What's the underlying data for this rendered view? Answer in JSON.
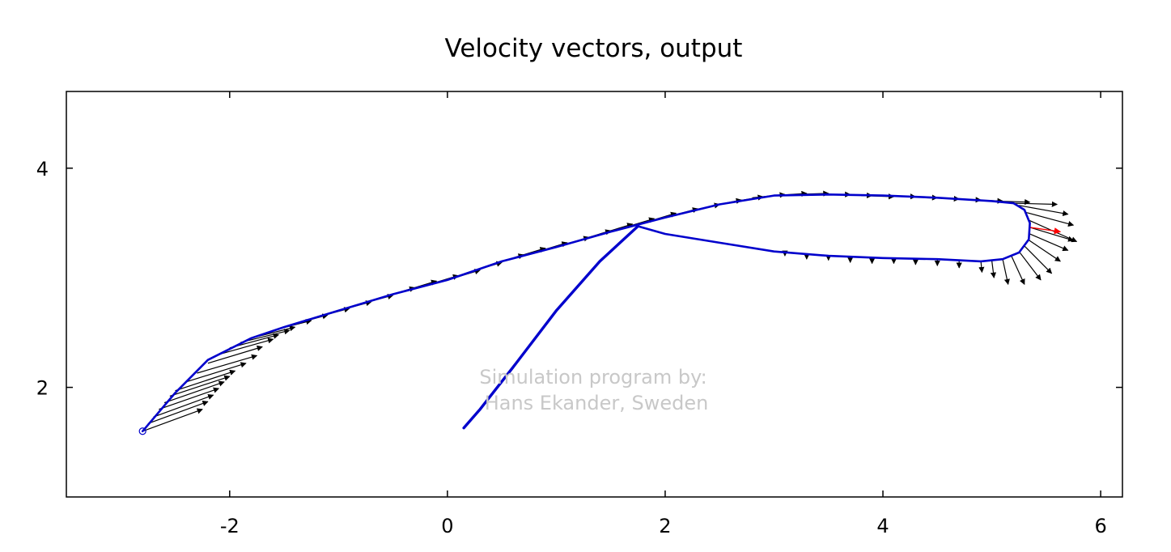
{
  "chart_data": {
    "type": "line",
    "title": "Velocity vectors, output",
    "xlabel": "",
    "ylabel": "",
    "xlim": [
      -3.5,
      6.2
    ],
    "ylim": [
      1.0,
      4.7
    ],
    "xticks": [
      -2,
      0,
      2,
      4,
      6
    ],
    "yticks": [
      2,
      4
    ],
    "grid": false,
    "colors": {
      "path": "#0000cc",
      "arrows": "#000000",
      "highlight": "#ff0000",
      "watermark": "#c8c8c8"
    },
    "series": [
      {
        "points": [
          [
            -2.8,
            1.6
          ],
          [
            -2.5,
            1.95
          ],
          [
            -2.2,
            2.25
          ],
          [
            -1.8,
            2.45
          ],
          [
            -1.5,
            2.55
          ],
          [
            -1.0,
            2.7
          ],
          [
            -0.5,
            2.85
          ],
          [
            0,
            2.98
          ],
          [
            0.5,
            3.15
          ],
          [
            1.0,
            3.28
          ],
          [
            1.5,
            3.42
          ],
          [
            2.0,
            3.55
          ],
          [
            2.5,
            3.67
          ],
          [
            3.0,
            3.75
          ],
          [
            3.5,
            3.76
          ],
          [
            4.0,
            3.75
          ],
          [
            4.5,
            3.73
          ],
          [
            5.0,
            3.7
          ],
          [
            5.2,
            3.68
          ],
          [
            5.3,
            3.62
          ],
          [
            5.35,
            3.5
          ],
          [
            5.34,
            3.35
          ],
          [
            5.25,
            3.23
          ],
          [
            5.1,
            3.17
          ],
          [
            4.9,
            3.15
          ],
          [
            4.5,
            3.17
          ],
          [
            4.0,
            3.18
          ],
          [
            3.5,
            3.2
          ],
          [
            3.0,
            3.24
          ],
          [
            2.5,
            3.32
          ],
          [
            2.0,
            3.4
          ],
          [
            1.75,
            3.47
          ]
        ]
      },
      {
        "points": [
          [
            1.75,
            3.47
          ],
          [
            1.4,
            3.15
          ],
          [
            1.0,
            2.7
          ],
          [
            0.6,
            2.18
          ],
          [
            0.3,
            1.8
          ],
          [
            0.15,
            1.63
          ]
        ]
      }
    ],
    "start_point": [
      -2.8,
      1.6
    ],
    "vectors": [
      {
        "x": -2.8,
        "y": 1.6,
        "dx": 0.55,
        "dy": 0.2
      },
      {
        "x": -2.75,
        "y": 1.67,
        "dx": 0.55,
        "dy": 0.2
      },
      {
        "x": -2.7,
        "y": 1.73,
        "dx": 0.55,
        "dy": 0.2
      },
      {
        "x": -2.65,
        "y": 1.8,
        "dx": 0.55,
        "dy": 0.19
      },
      {
        "x": -2.6,
        "y": 1.86,
        "dx": 0.55,
        "dy": 0.19
      },
      {
        "x": -2.55,
        "y": 1.92,
        "dx": 0.55,
        "dy": 0.18
      },
      {
        "x": -2.5,
        "y": 1.97,
        "dx": 0.55,
        "dy": 0.18
      },
      {
        "x": -2.4,
        "y": 2.05,
        "dx": 0.55,
        "dy": 0.17
      },
      {
        "x": -2.3,
        "y": 2.13,
        "dx": 0.55,
        "dy": 0.16
      },
      {
        "x": -2.2,
        "y": 2.22,
        "dx": 0.5,
        "dy": 0.15
      },
      {
        "x": -2.1,
        "y": 2.3,
        "dx": 0.5,
        "dy": 0.14
      },
      {
        "x": -2.0,
        "y": 2.36,
        "dx": 0.45,
        "dy": 0.12
      },
      {
        "x": -1.9,
        "y": 2.41,
        "dx": 0.45,
        "dy": 0.11
      },
      {
        "x": -1.8,
        "y": 2.45,
        "dx": 0.4,
        "dy": 0.1
      },
      {
        "x": -1.6,
        "y": 2.52,
        "dx": 0.35,
        "dy": 0.09
      },
      {
        "x": -1.4,
        "y": 2.58,
        "dx": 0.3,
        "dy": 0.08
      },
      {
        "x": -1.2,
        "y": 2.64,
        "dx": 0.3,
        "dy": 0.08
      },
      {
        "x": -1.0,
        "y": 2.7,
        "dx": 0.3,
        "dy": 0.08
      },
      {
        "x": -0.8,
        "y": 2.76,
        "dx": 0.3,
        "dy": 0.08
      },
      {
        "x": -0.6,
        "y": 2.82,
        "dx": 0.3,
        "dy": 0.09
      },
      {
        "x": -0.4,
        "y": 2.88,
        "dx": 0.3,
        "dy": 0.09
      },
      {
        "x": -0.2,
        "y": 2.93,
        "dx": 0.3,
        "dy": 0.09
      },
      {
        "x": 0.0,
        "y": 2.98,
        "dx": 0.3,
        "dy": 0.09
      },
      {
        "x": 0.2,
        "y": 3.05,
        "dx": 0.3,
        "dy": 0.09
      },
      {
        "x": 0.4,
        "y": 3.12,
        "dx": 0.3,
        "dy": 0.09
      },
      {
        "x": 0.6,
        "y": 3.18,
        "dx": 0.3,
        "dy": 0.09
      },
      {
        "x": 0.8,
        "y": 3.23,
        "dx": 0.3,
        "dy": 0.09
      },
      {
        "x": 1.0,
        "y": 3.28,
        "dx": 0.3,
        "dy": 0.09
      },
      {
        "x": 1.2,
        "y": 3.34,
        "dx": 0.3,
        "dy": 0.09
      },
      {
        "x": 1.4,
        "y": 3.4,
        "dx": 0.3,
        "dy": 0.09
      },
      {
        "x": 1.6,
        "y": 3.45,
        "dx": 0.3,
        "dy": 0.09
      },
      {
        "x": 1.8,
        "y": 3.5,
        "dx": 0.3,
        "dy": 0.09
      },
      {
        "x": 2.0,
        "y": 3.55,
        "dx": 0.3,
        "dy": 0.08
      },
      {
        "x": 2.2,
        "y": 3.6,
        "dx": 0.3,
        "dy": 0.07
      },
      {
        "x": 2.4,
        "y": 3.65,
        "dx": 0.3,
        "dy": 0.06
      },
      {
        "x": 2.6,
        "y": 3.69,
        "dx": 0.3,
        "dy": 0.05
      },
      {
        "x": 2.8,
        "y": 3.73,
        "dx": 0.3,
        "dy": 0.03
      },
      {
        "x": 3.0,
        "y": 3.75,
        "dx": 0.3,
        "dy": 0.02
      },
      {
        "x": 3.2,
        "y": 3.76,
        "dx": 0.3,
        "dy": 0.01
      },
      {
        "x": 3.4,
        "y": 3.76,
        "dx": 0.3,
        "dy": 0.0
      },
      {
        "x": 3.6,
        "y": 3.76,
        "dx": 0.3,
        "dy": -0.01
      },
      {
        "x": 3.8,
        "y": 3.75,
        "dx": 0.3,
        "dy": -0.01
      },
      {
        "x": 4.0,
        "y": 3.75,
        "dx": 0.3,
        "dy": -0.01
      },
      {
        "x": 4.2,
        "y": 3.74,
        "dx": 0.3,
        "dy": -0.01
      },
      {
        "x": 4.4,
        "y": 3.73,
        "dx": 0.3,
        "dy": -0.01
      },
      {
        "x": 4.6,
        "y": 3.72,
        "dx": 0.3,
        "dy": -0.01
      },
      {
        "x": 4.8,
        "y": 3.71,
        "dx": 0.3,
        "dy": -0.01
      },
      {
        "x": 5.0,
        "y": 3.7,
        "dx": 0.35,
        "dy": -0.01
      },
      {
        "x": 5.2,
        "y": 3.68,
        "dx": 0.4,
        "dy": -0.01
      },
      {
        "x": 5.25,
        "y": 3.66,
        "dx": 0.45,
        "dy": -0.08
      },
      {
        "x": 5.3,
        "y": 3.6,
        "dx": 0.45,
        "dy": -0.12
      },
      {
        "x": 5.33,
        "y": 3.53,
        "dx": 0.45,
        "dy": -0.2
      },
      {
        "x": 5.35,
        "y": 3.46,
        "dx": 0.4,
        "dy": -0.12
      },
      {
        "x": 5.35,
        "y": 3.4,
        "dx": 0.35,
        "dy": -0.15
      },
      {
        "x": 5.33,
        "y": 3.35,
        "dx": 0.3,
        "dy": -0.2
      },
      {
        "x": 5.3,
        "y": 3.29,
        "dx": 0.25,
        "dy": -0.25
      },
      {
        "x": 5.25,
        "y": 3.24,
        "dx": 0.2,
        "dy": -0.26
      },
      {
        "x": 5.18,
        "y": 3.2,
        "dx": 0.12,
        "dy": -0.26
      },
      {
        "x": 5.1,
        "y": 3.17,
        "dx": 0.05,
        "dy": -0.23
      },
      {
        "x": 5.0,
        "y": 3.16,
        "dx": 0.02,
        "dy": -0.16
      },
      {
        "x": 4.9,
        "y": 3.15,
        "dx": 0.01,
        "dy": -0.1
      },
      {
        "x": 4.7,
        "y": 3.16,
        "dx": 0.0,
        "dy": -0.07
      },
      {
        "x": 4.5,
        "y": 3.17,
        "dx": 0.0,
        "dy": -0.06
      },
      {
        "x": 4.3,
        "y": 3.17,
        "dx": 0.0,
        "dy": -0.05
      },
      {
        "x": 4.1,
        "y": 3.18,
        "dx": 0.0,
        "dy": -0.05
      },
      {
        "x": 3.9,
        "y": 3.18,
        "dx": 0.0,
        "dy": -0.05
      },
      {
        "x": 3.7,
        "y": 3.19,
        "dx": 0.0,
        "dy": -0.05
      },
      {
        "x": 3.5,
        "y": 3.2,
        "dx": 0.0,
        "dy": -0.04
      },
      {
        "x": 3.3,
        "y": 3.21,
        "dx": 0.0,
        "dy": -0.04
      },
      {
        "x": 3.1,
        "y": 3.23,
        "dx": 0.0,
        "dy": -0.03
      }
    ],
    "highlight_vector": {
      "x": 5.35,
      "y": 3.46,
      "dx": 0.28,
      "dy": -0.04
    },
    "annotations": [
      "Simulation program by:",
      "Hans Ekander, Sweden"
    ]
  }
}
